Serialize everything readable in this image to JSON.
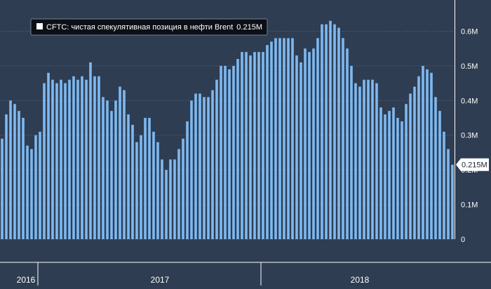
{
  "chart_data": {
    "type": "bar",
    "legend": {
      "label": "CFTC: чистая спекулятивная позиция в нефти Brent",
      "last_value": "0.215M",
      "placement": "top-left"
    },
    "last_value_tag": "0.215M",
    "y_ticks": [
      {
        "value": 0,
        "label": "0"
      },
      {
        "value": 0.1,
        "label": "0.1M"
      },
      {
        "value": 0.2,
        "label": "0.2M"
      },
      {
        "value": 0.3,
        "label": "0.3M"
      },
      {
        "value": 0.4,
        "label": "0.4M"
      },
      {
        "value": 0.5,
        "label": "0.5M"
      },
      {
        "value": 0.6,
        "label": "0.6M"
      }
    ],
    "ylim": [
      0,
      0.69
    ],
    "x_labels": [
      "2016",
      "2017",
      "2018"
    ],
    "grid": true,
    "values": [
      0.29,
      0.36,
      0.4,
      0.39,
      0.37,
      0.35,
      0.27,
      0.26,
      0.3,
      0.31,
      0.45,
      0.48,
      0.46,
      0.45,
      0.46,
      0.45,
      0.46,
      0.47,
      0.46,
      0.47,
      0.46,
      0.51,
      0.47,
      0.47,
      0.41,
      0.4,
      0.37,
      0.4,
      0.44,
      0.43,
      0.36,
      0.33,
      0.28,
      0.3,
      0.35,
      0.35,
      0.31,
      0.28,
      0.23,
      0.2,
      0.23,
      0.23,
      0.26,
      0.29,
      0.34,
      0.4,
      0.42,
      0.42,
      0.41,
      0.41,
      0.43,
      0.46,
      0.5,
      0.5,
      0.49,
      0.5,
      0.52,
      0.54,
      0.54,
      0.53,
      0.54,
      0.54,
      0.54,
      0.56,
      0.57,
      0.58,
      0.58,
      0.58,
      0.58,
      0.58,
      0.53,
      0.51,
      0.55,
      0.54,
      0.55,
      0.58,
      0.62,
      0.62,
      0.63,
      0.62,
      0.61,
      0.58,
      0.55,
      0.5,
      0.45,
      0.44,
      0.46,
      0.46,
      0.46,
      0.45,
      0.38,
      0.36,
      0.37,
      0.38,
      0.35,
      0.34,
      0.39,
      0.42,
      0.44,
      0.47,
      0.5,
      0.49,
      0.48,
      0.41,
      0.37,
      0.31,
      0.26,
      0.215
    ]
  }
}
